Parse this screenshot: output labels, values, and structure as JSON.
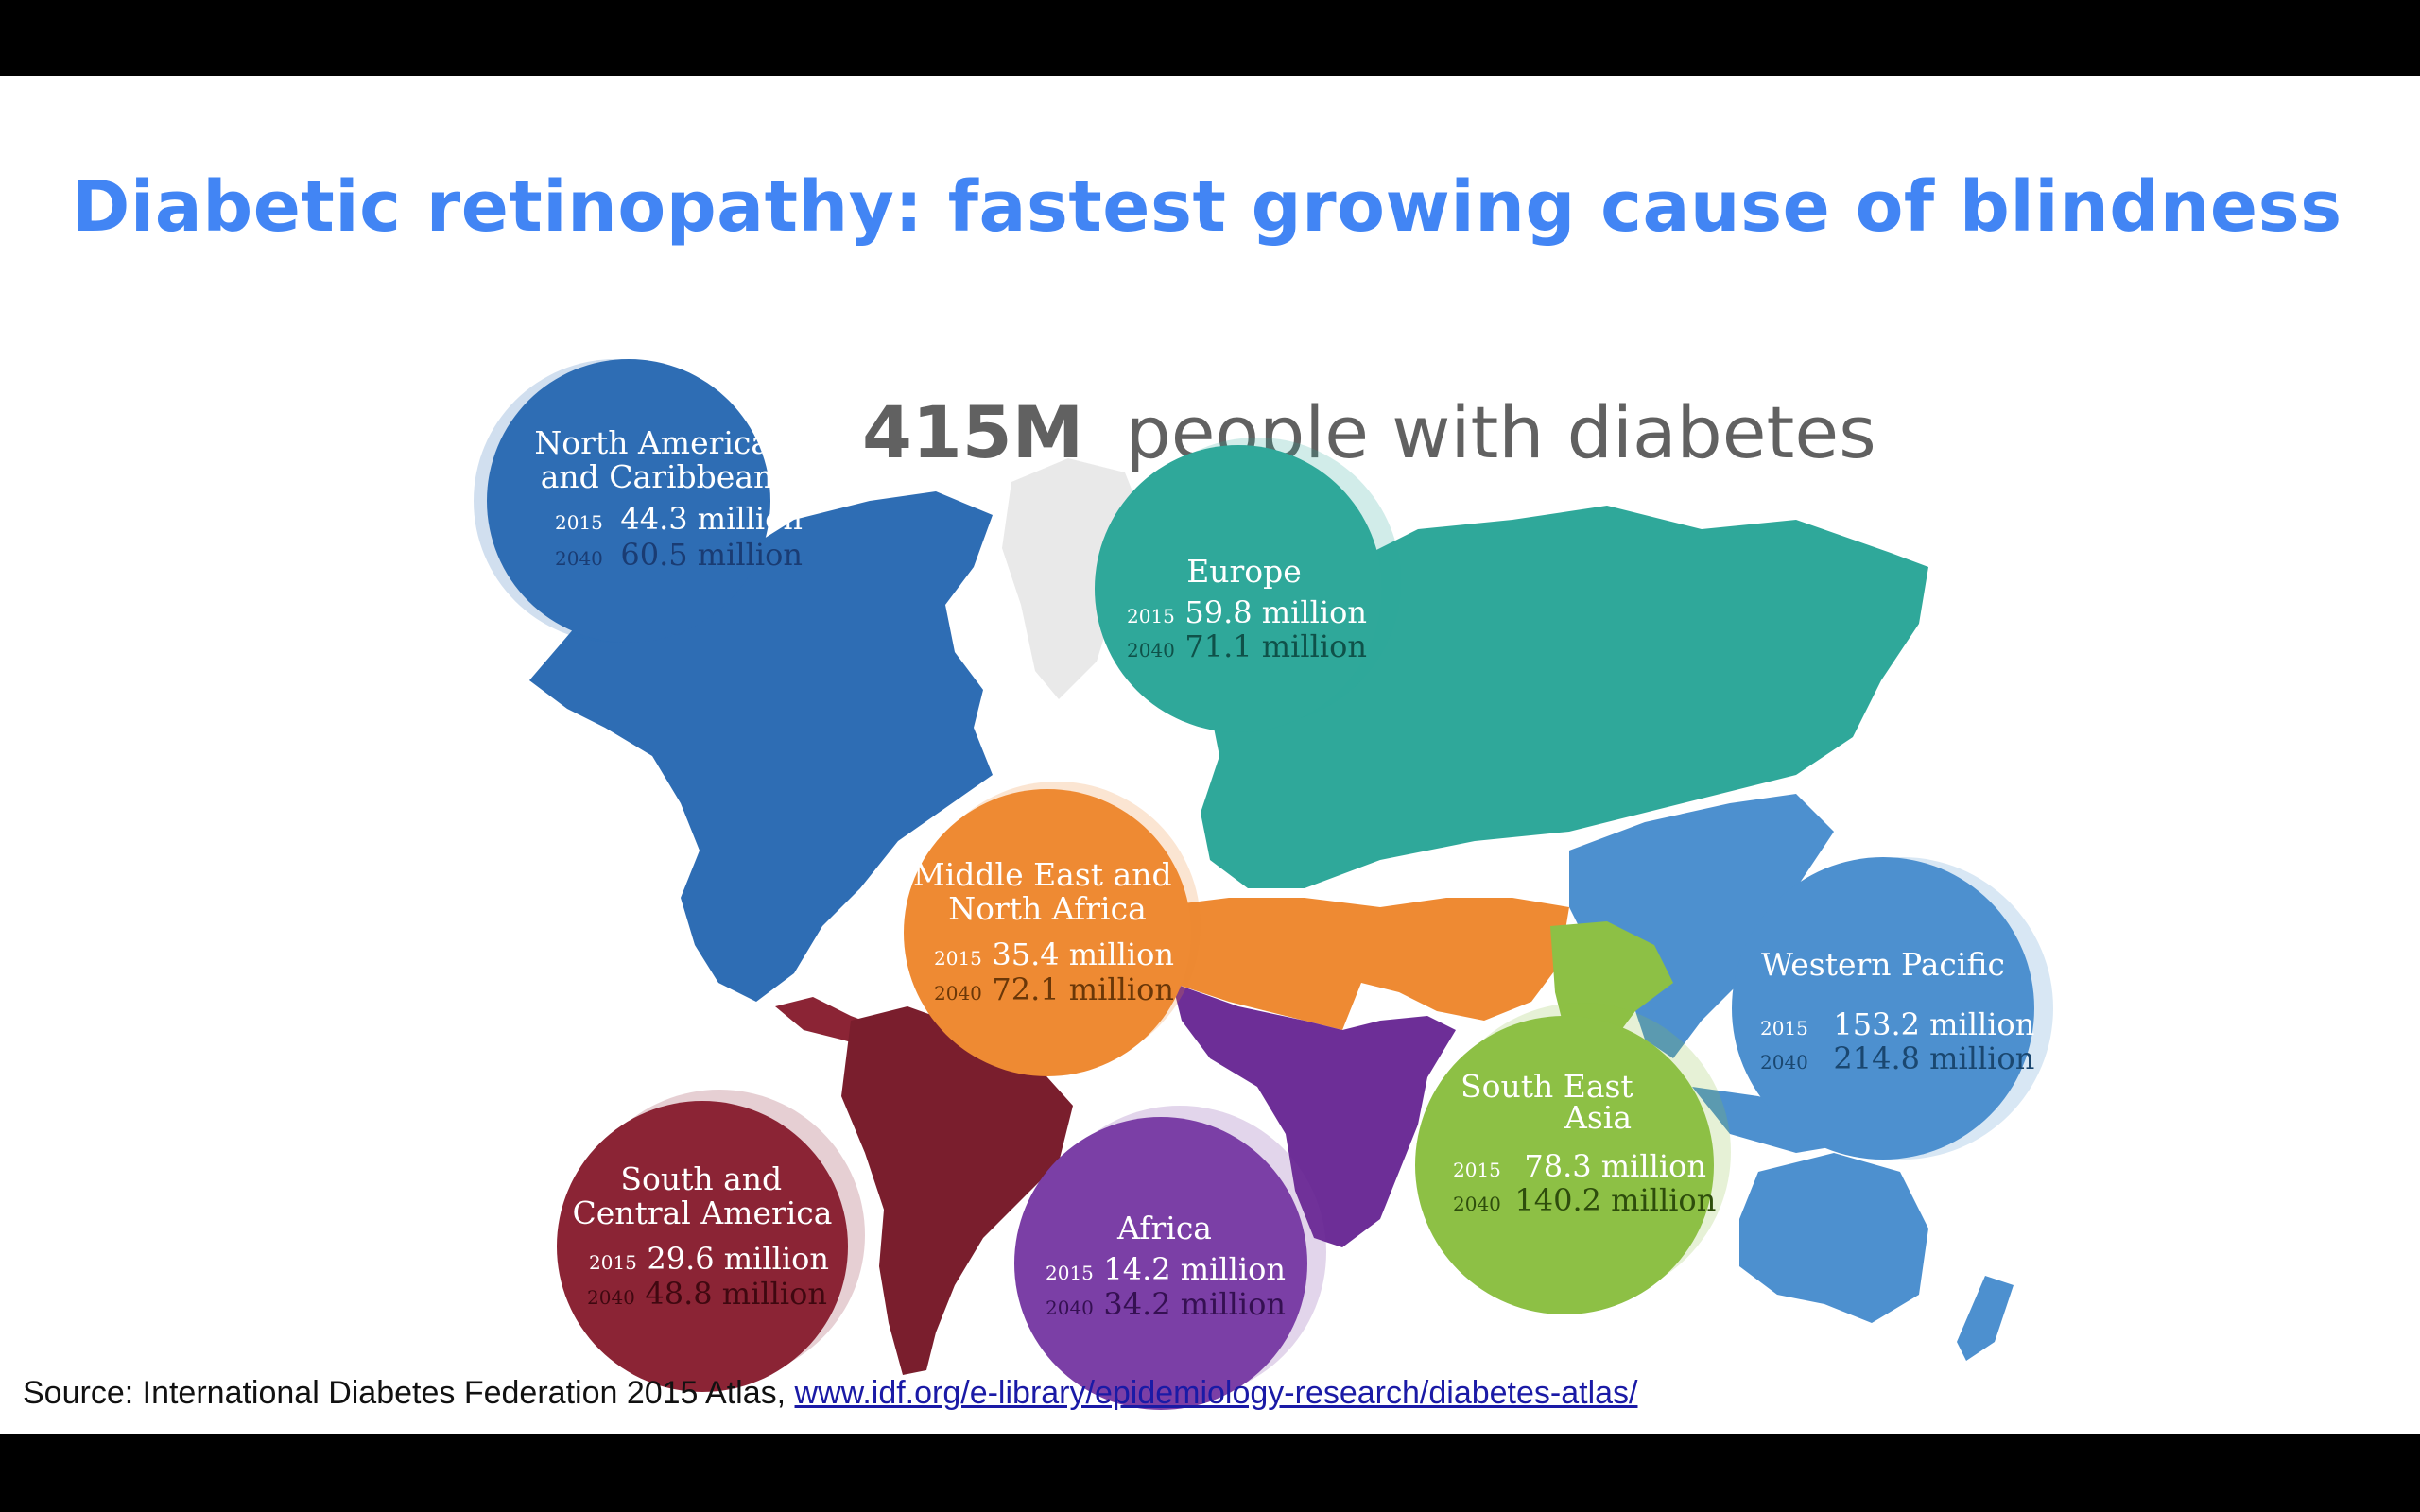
{
  "slide": {
    "title": "Diabetic retinopathy: fastest growing cause of blindness",
    "headline": {
      "total": "415M",
      "text": "people with diabetes"
    },
    "source": {
      "text": "Source: International Diabetes Federation 2015 Atlas,",
      "link": "www.idf.org/e-library/epidemiology-research/diabetes-atlas/"
    }
  },
  "year_labels": {
    "first": "2015",
    "second": "2040"
  },
  "regions": [
    {
      "id": "north-america",
      "name": [
        "North America",
        "and Caribbean"
      ],
      "v2015": "44.3 million",
      "v2040": "60.5 million",
      "color": "#2e6db4",
      "ink2040": "#1a3c73"
    },
    {
      "id": "europe",
      "name": [
        "Europe"
      ],
      "v2015": "59.8 million",
      "v2040": "71.1 million",
      "color": "#2fa89a",
      "ink2040": "#0f5149"
    },
    {
      "id": "mena",
      "name": [
        "Middle East and",
        "North Africa"
      ],
      "v2015": "35.4 million",
      "v2040": "72.1 million",
      "color": "#ee8a33",
      "ink2040": "#6a3708"
    },
    {
      "id": "western-pacific",
      "name": [
        "Western Pacific"
      ],
      "v2015": "153.2 million",
      "v2040": "214.8 million",
      "color": "#4d90cf",
      "ink2040": "#1a4770"
    },
    {
      "id": "south-east-asia",
      "name": [
        "South East",
        "Asia"
      ],
      "v2015": "78.3 million",
      "v2040": "140.2 million",
      "color": "#8dc045",
      "ink2040": "#2e4d0c"
    },
    {
      "id": "south-central-america",
      "name": [
        "South and",
        "Central America"
      ],
      "v2015": "29.6 million",
      "v2040": "48.8 million",
      "color": "#8b2435",
      "ink2040": "#3f0810"
    },
    {
      "id": "africa",
      "name": [
        "Africa"
      ],
      "v2015": "14.2 million",
      "v2040": "34.2 million",
      "color": "#7b3fa6",
      "ink2040": "#351052"
    }
  ],
  "colors": {
    "title": "#4285f4",
    "headline": "#616161",
    "greenland": "#e9e9e9"
  }
}
